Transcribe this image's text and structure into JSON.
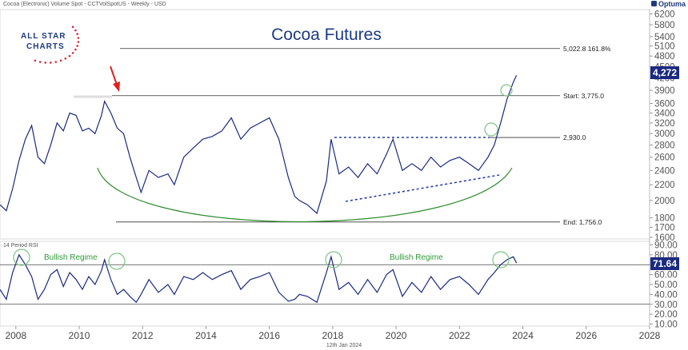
{
  "header": {
    "source": "Cocoa (Electronic) Volume Spot - CCTVolSpotUS - Weekly - USD",
    "brand": "Optuma"
  },
  "logo": {
    "line1": "ALL STAR",
    "line2": "CHARTS"
  },
  "footer": {
    "date": "12th Jan 2024"
  },
  "colors": {
    "price": "#1b2a80",
    "cup": "#2e8b2e",
    "circle": "#7dc383",
    "trend": "#2a3ea8",
    "arrow": "#e02020",
    "badge": "#1b2a80"
  },
  "chart_data": [
    {
      "type": "line",
      "title": "Cocoa Futures",
      "y_scale": "log",
      "y_ticks": [
        1600,
        1700,
        1800,
        2000,
        2200,
        2400,
        2600,
        2800,
        3000,
        3200,
        3400,
        3600,
        3900,
        4200,
        4500,
        4800,
        5100,
        5400,
        5800,
        6200
      ],
      "ylim": [
        1600,
        6300
      ],
      "x_ticks": [
        "2008",
        "2010",
        "2012",
        "2014",
        "2016",
        "2018",
        "2020",
        "2022",
        "2024",
        "2026",
        "2028"
      ],
      "xlim": [
        2007.5,
        2028.0
      ],
      "last_value": "4,272",
      "series": [
        {
          "x": [
            2007.5,
            2007.7,
            2007.9,
            2008.1,
            2008.3,
            2008.5,
            2008.7,
            2008.9,
            2009.1,
            2009.3,
            2009.5,
            2009.7,
            2009.9,
            2010.1,
            2010.3,
            2010.5,
            2010.7,
            2010.8,
            2011.0,
            2011.2,
            2011.4,
            2011.6,
            2011.8,
            2011.95,
            2012.2,
            2012.5,
            2012.8,
            2013.0,
            2013.3,
            2013.6,
            2013.9,
            2014.2,
            2014.5,
            2014.8,
            2015.1,
            2015.4,
            2015.7,
            2016.0,
            2016.3,
            2016.6,
            2016.8,
            2016.95,
            2017.2,
            2017.5,
            2017.8,
            2017.95,
            2018.2,
            2018.5,
            2018.8,
            2019.1,
            2019.4,
            2019.7,
            2019.9,
            2020.2,
            2020.5,
            2020.8,
            2021.1,
            2021.4,
            2021.7,
            2022.0,
            2022.3,
            2022.6,
            2022.9,
            2023.1,
            2023.3,
            2023.5,
            2023.7,
            2023.8
          ],
          "values": [
            1950,
            1880,
            2150,
            2550,
            2900,
            3150,
            2600,
            2500,
            2800,
            3200,
            3050,
            3400,
            3350,
            3050,
            3100,
            3000,
            3350,
            3650,
            3400,
            3100,
            3000,
            2600,
            2300,
            2100,
            2400,
            2300,
            2350,
            2200,
            2600,
            2750,
            2900,
            2950,
            3050,
            3300,
            2900,
            3100,
            3200,
            3300,
            2900,
            2300,
            2050,
            2000,
            1950,
            1850,
            2250,
            2900,
            2350,
            2450,
            2300,
            2500,
            2350,
            2650,
            2900,
            2400,
            2500,
            2400,
            2600,
            2450,
            2550,
            2600,
            2500,
            2400,
            2600,
            2800,
            3200,
            3700,
            4100,
            4272
          ]
        }
      ],
      "levels": [
        {
          "value": 5022.8,
          "label": "5,022.8   161.8%"
        },
        {
          "value": 3775.0,
          "label": "Start:   3,775.0"
        },
        {
          "value": 2930.0,
          "label": "2,930.0"
        },
        {
          "value": 1756.0,
          "label": "End:   1,756.0"
        }
      ]
    },
    {
      "type": "line",
      "title": "14 Period RSI",
      "y_ticks": [
        10,
        20,
        30,
        40,
        50,
        60,
        70,
        80,
        90
      ],
      "y_tick_labels": [
        "10.00",
        "20.00",
        "30.00",
        "40.00",
        "50.00",
        "60.00",
        "70.00",
        "80.00",
        "90.00"
      ],
      "ylim": [
        8,
        92
      ],
      "last_value": "71.64",
      "reference_lines": [
        70,
        30
      ],
      "annotations": [
        "Bullish Regime",
        "Bullish Regime"
      ],
      "series": [
        {
          "x": [
            2007.5,
            2007.7,
            2007.9,
            2008.1,
            2008.3,
            2008.5,
            2008.7,
            2008.9,
            2009.1,
            2009.3,
            2009.5,
            2009.7,
            2009.9,
            2010.1,
            2010.3,
            2010.5,
            2010.7,
            2010.8,
            2011.0,
            2011.2,
            2011.4,
            2011.6,
            2011.8,
            2011.95,
            2012.2,
            2012.5,
            2012.8,
            2013.0,
            2013.3,
            2013.6,
            2013.9,
            2014.2,
            2014.5,
            2014.8,
            2015.1,
            2015.4,
            2015.7,
            2016.0,
            2016.3,
            2016.6,
            2016.8,
            2016.95,
            2017.2,
            2017.5,
            2017.8,
            2017.95,
            2018.2,
            2018.5,
            2018.8,
            2019.1,
            2019.4,
            2019.7,
            2019.9,
            2020.2,
            2020.5,
            2020.8,
            2021.1,
            2021.4,
            2021.7,
            2022.0,
            2022.3,
            2022.6,
            2022.9,
            2023.1,
            2023.3,
            2023.5,
            2023.7,
            2023.8
          ],
          "values": [
            45,
            35,
            62,
            80,
            70,
            58,
            35,
            45,
            60,
            65,
            48,
            62,
            55,
            45,
            58,
            50,
            64,
            75,
            55,
            40,
            45,
            38,
            32,
            40,
            55,
            42,
            50,
            40,
            58,
            55,
            62,
            55,
            60,
            64,
            45,
            55,
            58,
            62,
            42,
            33,
            35,
            40,
            38,
            32,
            62,
            78,
            45,
            52,
            40,
            55,
            42,
            60,
            65,
            38,
            52,
            42,
            58,
            45,
            55,
            58,
            50,
            40,
            55,
            62,
            70,
            75,
            78,
            71.64
          ]
        }
      ]
    }
  ]
}
